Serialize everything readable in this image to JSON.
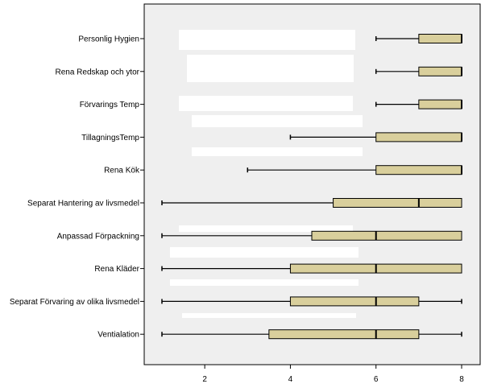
{
  "chart_data": {
    "type": "boxplot",
    "orientation": "horizontal",
    "title": "",
    "xlabel": "",
    "ylabel": "",
    "xlim": [
      0.5,
      8.5
    ],
    "x_ticks": [
      2,
      4,
      6,
      8
    ],
    "grid": false,
    "colors": {
      "plot_background": "#efefef",
      "box_fill": "#d9cf9c",
      "stroke": "#000000",
      "blank_band": "#ffffff"
    },
    "categories": [
      "Personlig Hygien",
      "Rena Redskap och ytor",
      "Förvarings Temp",
      "TillagningsTemp",
      "Rena Kök",
      "Separat Hantering av livsmedel",
      "Anpassad Förpackning",
      "Rena Kläder",
      "Separat Förvaring av olika livsmedel",
      "Ventialation"
    ],
    "boxes": [
      {
        "min": 6,
        "q1": 7,
        "median": 8,
        "q3": 8,
        "max": 8
      },
      {
        "min": 6,
        "q1": 7,
        "median": 8,
        "q3": 8,
        "max": 8
      },
      {
        "min": 6,
        "q1": 7,
        "median": 8,
        "q3": 8,
        "max": 8
      },
      {
        "min": 4,
        "q1": 6,
        "median": 8,
        "q3": 8,
        "max": 8
      },
      {
        "min": 3,
        "q1": 6,
        "median": 8,
        "q3": 8,
        "max": 8
      },
      {
        "min": 1,
        "q1": 5,
        "median": 7,
        "q3": 8,
        "max": 8
      },
      {
        "min": 1,
        "q1": 4.5,
        "median": 6,
        "q3": 8,
        "max": 8
      },
      {
        "min": 1,
        "q1": 4,
        "median": 6,
        "q3": 8,
        "max": 8
      },
      {
        "min": 1,
        "q1": 4,
        "median": 6,
        "q3": 7,
        "max": 8
      },
      {
        "min": 1,
        "q1": 3.5,
        "median": 6,
        "q3": 7,
        "max": 8
      }
    ]
  }
}
